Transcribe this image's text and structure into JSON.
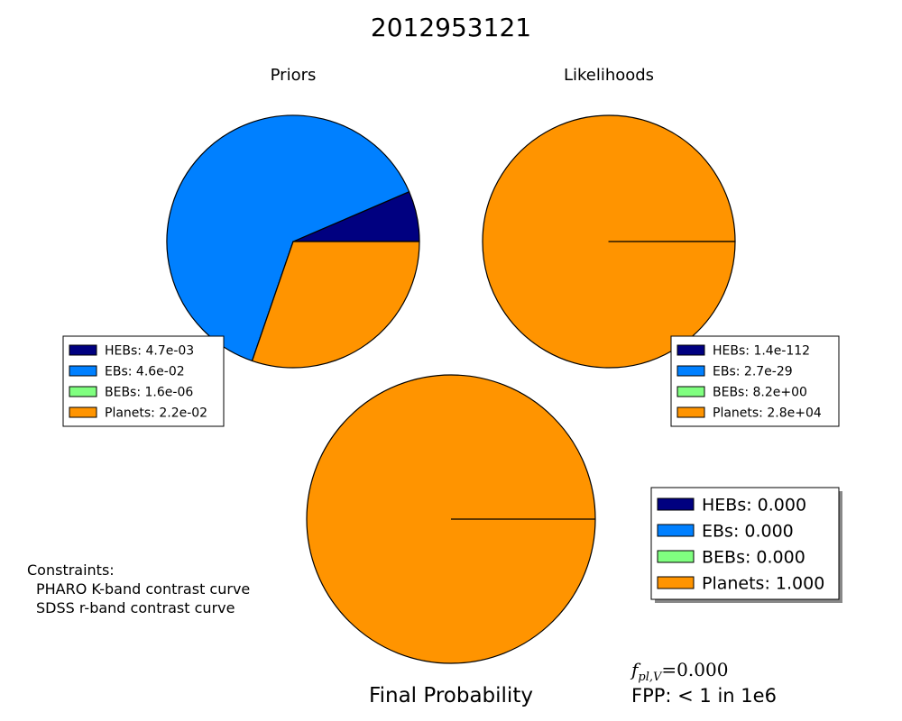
{
  "title": "2012953121",
  "colors": {
    "HEBs": "#000080",
    "EBs": "#0080ff",
    "BEBs": "#80ff80",
    "Planets": "#ff9400",
    "constraints_text": "#ff0000"
  },
  "chart_data": [
    {
      "type": "pie",
      "title": "Priors",
      "categories": [
        "HEBs",
        "EBs",
        "BEBs",
        "Planets"
      ],
      "values": [
        0.0047,
        0.046,
        1.6e-06,
        0.022
      ],
      "legend": {
        "placement": "bottom-left",
        "labels": [
          "HEBs: 4.7e-03",
          "EBs: 4.6e-02",
          "BEBs: 1.6e-06",
          "Planets: 2.2e-02"
        ]
      }
    },
    {
      "type": "pie",
      "title": "Likelihoods",
      "categories": [
        "HEBs",
        "EBs",
        "BEBs",
        "Planets"
      ],
      "values": [
        1.4e-112,
        2.7e-29,
        8.2,
        28000
      ],
      "legend": {
        "placement": "bottom-right",
        "labels": [
          "HEBs: 1.4e-112",
          "EBs: 2.7e-29",
          "BEBs: 8.2e+00",
          "Planets: 2.8e+04"
        ]
      }
    },
    {
      "type": "pie",
      "title": "Final Probability",
      "categories": [
        "HEBs",
        "EBs",
        "BEBs",
        "Planets"
      ],
      "values": [
        0.0,
        0.0,
        0.0,
        1.0
      ],
      "legend": {
        "placement": "right",
        "labels": [
          "HEBs: 0.000",
          "EBs: 0.000",
          "BEBs: 0.000",
          "Planets: 1.000"
        ]
      }
    }
  ],
  "constraints": {
    "heading": "Constraints:",
    "items": [
      "PHARO K-band contrast curve",
      "SDSS r-band contrast curve"
    ]
  },
  "fpl": {
    "symbol": "f",
    "subscript": "pl,V",
    "value": "=0.000"
  },
  "fpp": "FPP: < 1 in 1e6"
}
